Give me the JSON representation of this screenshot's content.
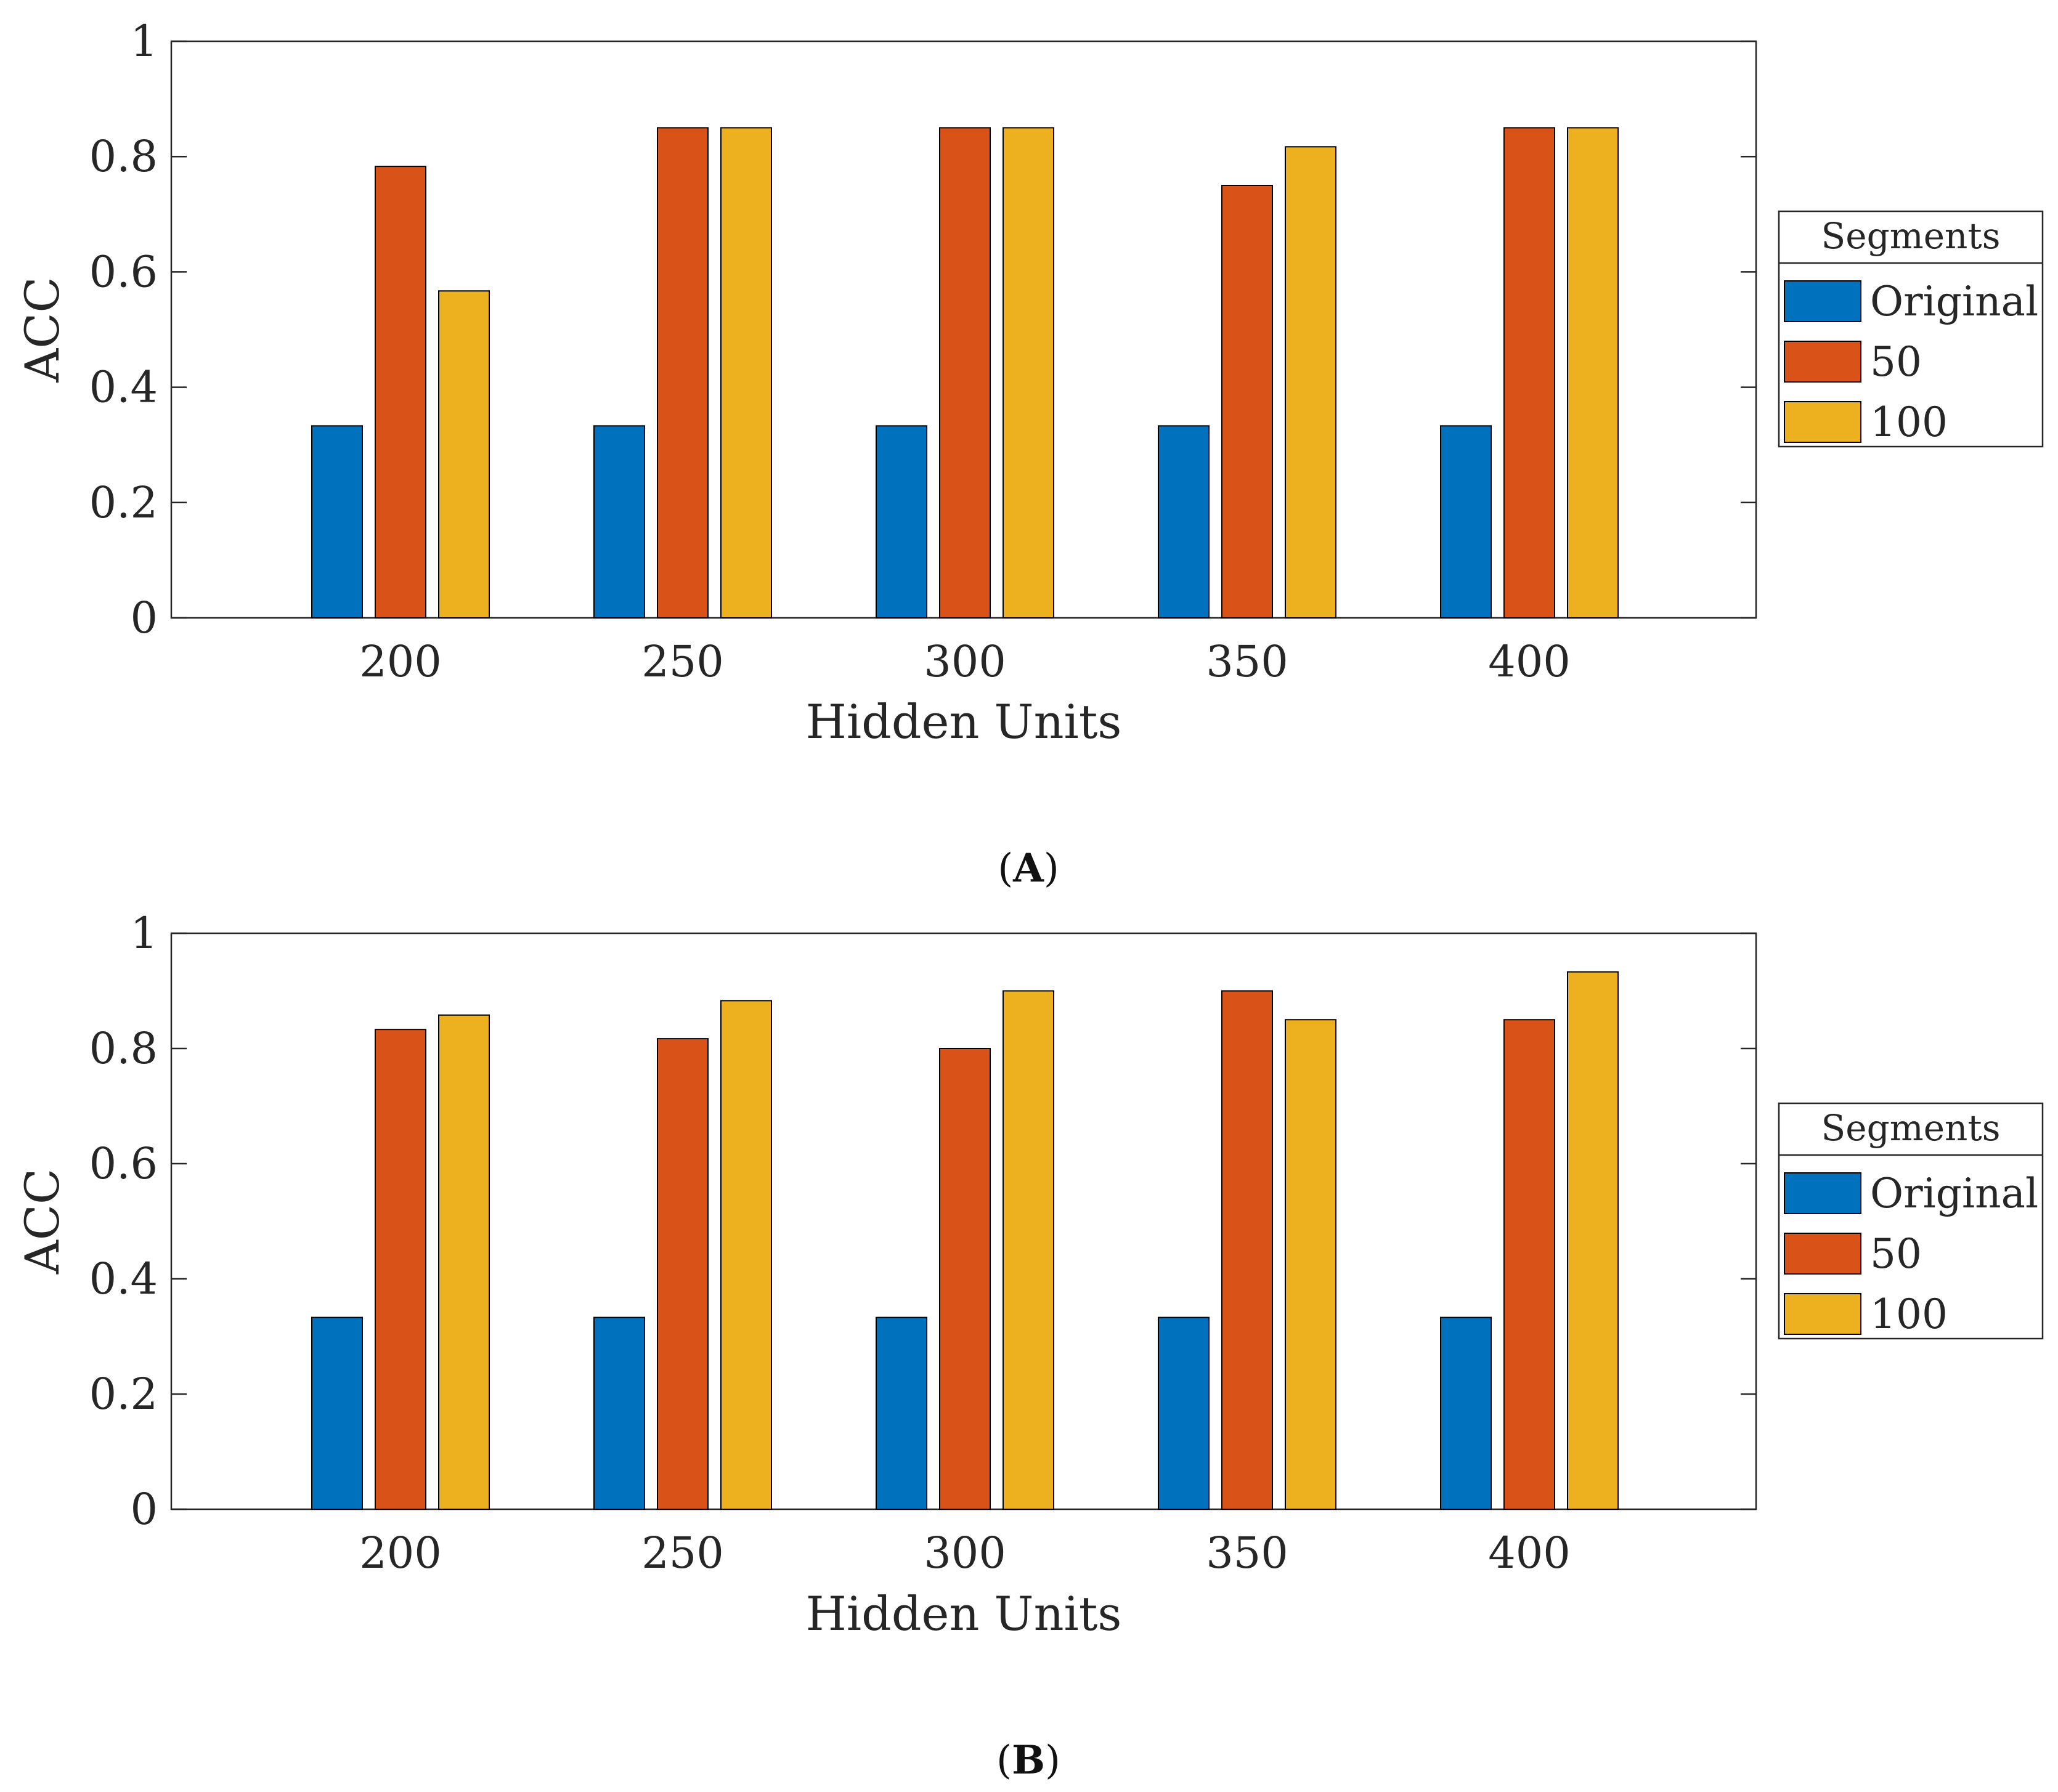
{
  "chart_data": [
    {
      "type": "bar",
      "panel_label": "A",
      "categories": [
        "200",
        "250",
        "300",
        "350",
        "400"
      ],
      "xlabel": "Hidden Units",
      "ylabel": "ACC",
      "ylim": [
        0,
        1
      ],
      "yticks": [
        "0",
        "0.2",
        "0.4",
        "0.6",
        "0.8",
        "1"
      ],
      "legend_title": "Segments",
      "legend_position": "right",
      "series": [
        {
          "name": "Original",
          "color": "#0072BD",
          "values": [
            0.333,
            0.333,
            0.333,
            0.333,
            0.333
          ]
        },
        {
          "name": "50",
          "color": "#D95319",
          "values": [
            0.783,
            0.85,
            0.85,
            0.75,
            0.85
          ]
        },
        {
          "name": "100",
          "color": "#EDB120",
          "values": [
            0.567,
            0.85,
            0.85,
            0.817,
            0.85
          ]
        }
      ]
    },
    {
      "type": "bar",
      "panel_label": "B",
      "categories": [
        "200",
        "250",
        "300",
        "350",
        "400"
      ],
      "xlabel": "Hidden Units",
      "ylabel": "ACC",
      "ylim": [
        0,
        1
      ],
      "yticks": [
        "0",
        "0.2",
        "0.4",
        "0.6",
        "0.8",
        "1"
      ],
      "legend_title": "Segments",
      "legend_position": "right",
      "series": [
        {
          "name": "Original",
          "color": "#0072BD",
          "values": [
            0.333,
            0.333,
            0.333,
            0.333,
            0.333
          ]
        },
        {
          "name": "50",
          "color": "#D95319",
          "values": [
            0.833,
            0.817,
            0.8,
            0.9,
            0.85
          ]
        },
        {
          "name": "100",
          "color": "#EDB120",
          "values": [
            0.858,
            0.883,
            0.9,
            0.85,
            0.933
          ]
        }
      ]
    }
  ]
}
